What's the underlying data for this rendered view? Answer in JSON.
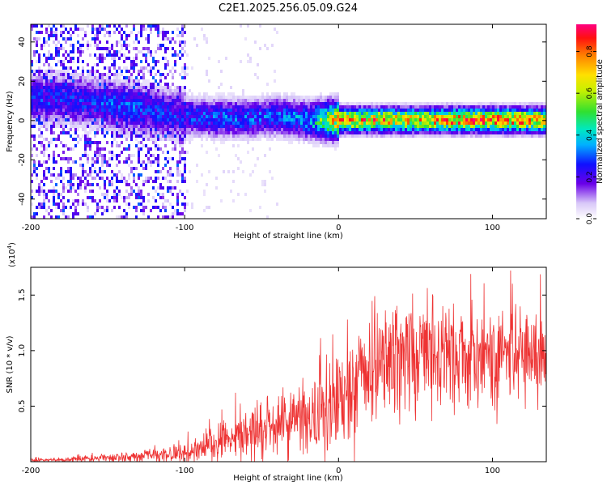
{
  "title": "C2E1.2025.256.05.09.G24",
  "chart_data": [
    {
      "type": "heatmap",
      "xlabel": "Height of straight line (km)",
      "ylabel": "Frequency (Hz)",
      "xlim": [
        -200,
        135
      ],
      "ylim": [
        -50,
        49
      ],
      "xticks": [
        -200,
        -100,
        0,
        100
      ],
      "xtick_labels": [
        "-200",
        "-100",
        "0",
        "100"
      ],
      "yticks": [
        40,
        20,
        0,
        -20,
        -40
      ],
      "ytick_labels": [
        "40",
        "20",
        "0",
        "-20",
        "-40"
      ],
      "colorbar": {
        "label": "Normalized spectral amplitude",
        "range": [
          0.0,
          0.93
        ],
        "ticks": [
          0.0,
          0.2,
          0.4,
          0.6,
          0.8
        ],
        "tick_labels": [
          "0.0",
          "0.2",
          "0.4",
          "0.6",
          "0.8"
        ]
      },
      "ridge": {
        "description_points_x": [
          -180,
          -160,
          -140,
          -120,
          -100,
          -80,
          -60,
          -40,
          -20,
          0,
          50,
          100,
          135
        ],
        "center_freq_hz": [
          12,
          10,
          8,
          5,
          3,
          2,
          2,
          3,
          1,
          1,
          1,
          1,
          1
        ],
        "peak_amplitude": [
          0.3,
          0.3,
          0.35,
          0.3,
          0.3,
          0.35,
          0.35,
          0.35,
          0.4,
          0.85,
          0.85,
          0.9,
          0.85
        ]
      }
    },
    {
      "type": "line",
      "series_name": "SNR",
      "xlabel": "Height of straight line (km)",
      "ylabel": "SNR (10 * v/v)",
      "y_multiplier_label": "(x10",
      "y_multiplier_exp": "4",
      "y_multiplier_close": ")",
      "xlim": [
        -200,
        135
      ],
      "ylim": [
        0,
        1.75
      ],
      "xticks": [
        -200,
        -100,
        0,
        100
      ],
      "xtick_labels": [
        "-200",
        "-100",
        "0",
        "100"
      ],
      "yticks": [
        0.5,
        1.0,
        1.5
      ],
      "ytick_labels": [
        "0.5",
        "1.0",
        "1.5"
      ],
      "color": "#ee3333",
      "envelope_x": [
        -200,
        -180,
        -160,
        -140,
        -120,
        -100,
        -90,
        -80,
        -70,
        -60,
        -50,
        -40,
        -30,
        -20,
        -10,
        0,
        10,
        20,
        30,
        40,
        60,
        80,
        100,
        120,
        135
      ],
      "envelope_mean": [
        0.01,
        0.02,
        0.03,
        0.04,
        0.06,
        0.08,
        0.12,
        0.18,
        0.2,
        0.24,
        0.28,
        0.3,
        0.36,
        0.42,
        0.5,
        0.58,
        0.7,
        0.82,
        0.9,
        0.95,
        1.0,
        1.0,
        0.98,
        0.97,
        0.97
      ],
      "envelope_spread": [
        0.01,
        0.01,
        0.02,
        0.02,
        0.03,
        0.05,
        0.08,
        0.1,
        0.1,
        0.12,
        0.13,
        0.14,
        0.16,
        0.18,
        0.2,
        0.22,
        0.24,
        0.26,
        0.26,
        0.26,
        0.26,
        0.25,
        0.24,
        0.22,
        0.22
      ]
    }
  ]
}
